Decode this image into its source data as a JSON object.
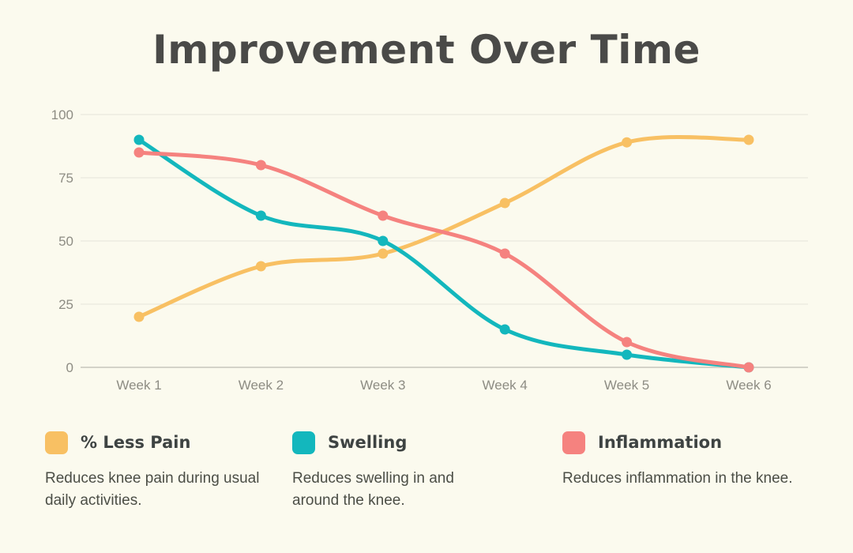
{
  "title": "Improvement Over Time",
  "colors": {
    "background": "#FBFAEE",
    "gridline": "#E5E4D9",
    "axis_line": "#C7C6BB",
    "tick_text": "#8D8C83",
    "title_text": "#4A4A48",
    "legend_label_text": "#3E4342",
    "description_text": "#4B4E46"
  },
  "chart_data": {
    "type": "line",
    "title": "Improvement Over Time",
    "categories": [
      "Week 1",
      "Week 2",
      "Week 3",
      "Week 4",
      "Week 5",
      "Week 6"
    ],
    "series": [
      {
        "name": "% Less Pain",
        "color": "#F8C063",
        "values": [
          20,
          40,
          45,
          65,
          89,
          90
        ],
        "description": "Reduces knee pain during usual daily activities."
      },
      {
        "name": "Swelling",
        "color": "#13B7BD",
        "values": [
          90,
          60,
          50,
          15,
          5,
          0
        ],
        "description": "Reduces swelling in and around the knee."
      },
      {
        "name": "Inflammation",
        "color": "#F5827F",
        "values": [
          85,
          80,
          60,
          45,
          10,
          0
        ],
        "description": "Reduces inflammation in the knee."
      }
    ],
    "xlabel": "",
    "ylabel": "",
    "ylim": [
      0,
      100
    ],
    "yticks": [
      0,
      25,
      50,
      75,
      100
    ],
    "grid": true,
    "legend_position": "bottom",
    "curve": "smooth"
  }
}
